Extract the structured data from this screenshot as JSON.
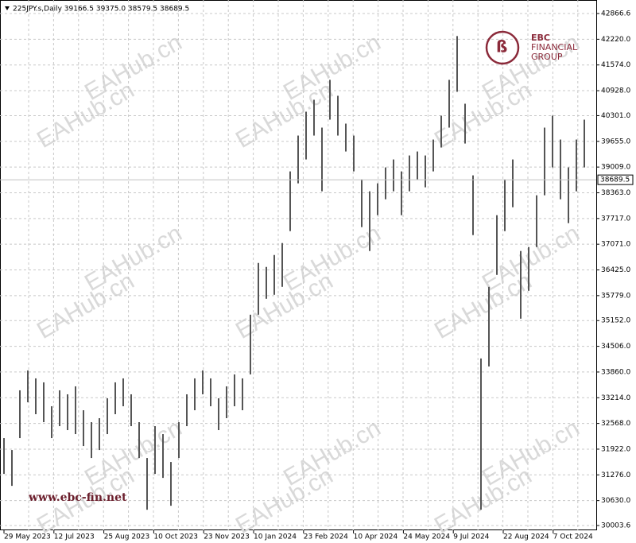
{
  "chart_data": {
    "type": "hilo",
    "header": "225JPY.s,Daily  39166.5 39375.0 38579.5 38689.5",
    "watermark": "EAHub.cn",
    "logo": [
      "EBC",
      "FINANCIAL",
      "GROUP"
    ],
    "site": "www.ebc-fin.net",
    "last_price": {
      "value": 38689.5,
      "label": "38689.5"
    },
    "date_labels": [
      "29 May 2023",
      "12 Jul 2023",
      "25 Aug 2023",
      "10 Oct 2023",
      "23 Nov 2023",
      "10 Jan 2024",
      "23 Feb 2024",
      "10 Apr 2024",
      "24 May 2024",
      "9 Jul 2024",
      "22 Aug 2024",
      "7 Oct 2024"
    ],
    "ylim": [
      29884,
      43206
    ],
    "yticks": [
      42866.6,
      {
        "value": 42220,
        "label": "42220.0"
      },
      {
        "value": 41574,
        "label": "41574.0"
      },
      {
        "value": 40928,
        "label": "40928.0"
      },
      {
        "value": 40301,
        "label": "40301.0"
      },
      {
        "value": 39655,
        "label": "39655.0"
      },
      {
        "value": 39009,
        "label": "39009.0"
      },
      {
        "value": 38363,
        "label": "38363.0"
      },
      {
        "value": 37717,
        "label": "37717.0"
      },
      {
        "value": 37071,
        "label": "37071.0"
      },
      {
        "value": 36425,
        "label": "36425.0"
      },
      {
        "value": 35779,
        "label": "35779.0"
      },
      {
        "value": 35152,
        "label": "35152.0"
      },
      {
        "value": 34506,
        "label": "34506.0"
      },
      {
        "value": 33860,
        "label": "33860.0"
      },
      {
        "value": 33214,
        "label": "33214.0"
      },
      {
        "value": 32568,
        "label": "32568.0"
      },
      {
        "value": 31922,
        "label": "31922.0"
      },
      {
        "value": 31276,
        "label": "31276.0"
      },
      {
        "value": 30630,
        "label": "30630.0"
      },
      30003.6
    ],
    "color": "#555555",
    "grid": true,
    "high": [
      32200,
      31900,
      33400,
      33900,
      33700,
      33600,
      33000,
      33400,
      33300,
      33500,
      32900,
      32600,
      32700,
      33200,
      33600,
      33700,
      33300,
      32600,
      31700,
      32500,
      32300,
      31600,
      32600,
      33300,
      33700,
      33900,
      33700,
      33200,
      33500,
      33800,
      33700,
      35300,
      36600,
      36500,
      36800,
      37100,
      38900,
      39800,
      40400,
      40700,
      40000,
      41200,
      40800,
      40100,
      39800,
      38700,
      38400,
      38600,
      39000,
      39200,
      38900,
      39300,
      39400,
      39300,
      39700,
      40300,
      41200,
      42300,
      40600,
      38800,
      34200,
      36000,
      37800,
      38700,
      39200,
      36900,
      37000,
      38300,
      40000,
      40300,
      39700,
      39000,
      39700,
      40200
    ],
    "low": [
      31300,
      31000,
      32200,
      33100,
      32800,
      32600,
      32200,
      32500,
      32400,
      32300,
      32000,
      31700,
      31900,
      32300,
      32800,
      33000,
      32500,
      31700,
      30400,
      31300,
      31200,
      30500,
      31700,
      32500,
      32900,
      33300,
      33000,
      32400,
      32700,
      33000,
      32900,
      33800,
      35300,
      35700,
      35800,
      36000,
      37400,
      38600,
      39200,
      39800,
      38400,
      40200,
      39800,
      39400,
      38900,
      37500,
      36900,
      37800,
      38200,
      38400,
      37800,
      38400,
      38700,
      38500,
      38900,
      39500,
      40000,
      40900,
      39600,
      37300,
      30400,
      34000,
      36300,
      37400,
      38000,
      35200,
      35900,
      37000,
      38300,
      39000,
      38200,
      37600,
      38400,
      39000
    ]
  }
}
